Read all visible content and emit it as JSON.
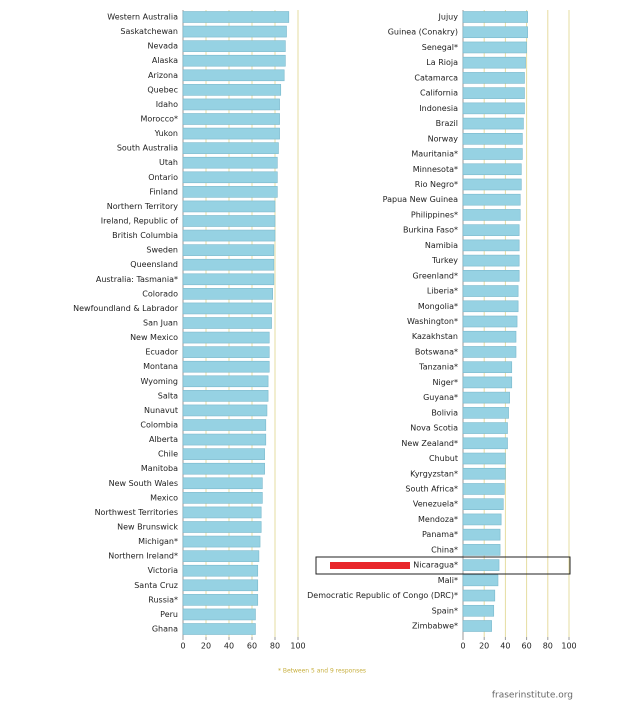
{
  "chart_data": [
    {
      "type": "bar",
      "orientation": "horizontal",
      "color": "#96d2e3",
      "categories": [
        "Western Australia",
        "Saskatchewan",
        "Nevada",
        "Alaska",
        "Arizona",
        "Quebec",
        "Idaho",
        "Morocco*",
        "Yukon",
        "South Australia",
        "Utah",
        "Ontario",
        "Finland",
        "Northern Territory",
        "Ireland, Republic of",
        "British Columbia",
        "Sweden",
        "Queensland",
        "Australia: Tasmania*",
        "Colorado",
        "Newfoundland & Labrador",
        "San Juan",
        "New Mexico",
        "Ecuador",
        "Montana",
        "Wyoming",
        "Salta",
        "Nunavut",
        "Colombia",
        "Alberta",
        "Chile",
        "Manitoba",
        "New South Wales",
        "Mexico",
        "Northwest Territories",
        "New Brunswick",
        "Michigan*",
        "Northern Ireland*",
        "Victoria",
        "Santa Cruz",
        "Russia*",
        "Peru",
        "Ghana"
      ],
      "values": [
        92,
        90,
        89,
        89,
        88,
        85,
        84,
        84,
        84,
        83,
        82,
        82,
        82,
        80,
        80,
        80,
        79,
        79,
        79,
        78,
        77,
        77,
        75,
        75,
        75,
        74,
        74,
        73,
        72,
        72,
        71,
        71,
        69,
        69,
        68,
        68,
        67,
        66,
        65,
        65,
        65,
        63,
        63
      ],
      "xlim": [
        0,
        100
      ],
      "xticks": [
        0,
        20,
        40,
        60,
        80,
        100
      ],
      "grid": true
    },
    {
      "type": "bar",
      "orientation": "horizontal",
      "color": "#96d2e3",
      "categories": [
        "Jujuy",
        "Guinea (Conakry)",
        "Senegal*",
        "La Rioja",
        "Catamarca",
        "California",
        "Indonesia",
        "Brazil",
        "Norway",
        "Mauritania*",
        "Minnesota*",
        "Rio Negro*",
        "Papua New Guinea",
        "Philippines*",
        "Burkina Faso*",
        "Namibia",
        "Turkey",
        "Greenland*",
        "Liberia*",
        "Mongolia*",
        "Washington*",
        "Kazakhstan",
        "Botswana*",
        "Tanzania*",
        "Niger*",
        "Guyana*",
        "Bolivia",
        "Nova Scotia",
        "New Zealand*",
        "Chubut",
        "Kyrgyzstan*",
        "South Africa*",
        "Venezuela*",
        "Mendoza*",
        "Panama*",
        "China*",
        "Nicaragua*",
        "Mali*",
        "Democratic Republic of Congo (DRC)*",
        "Spain*",
        "Zimbabwe*"
      ],
      "values": [
        61,
        61,
        60,
        59,
        58,
        58,
        58,
        57,
        56,
        56,
        55,
        55,
        54,
        54,
        53,
        53,
        53,
        53,
        52,
        52,
        51,
        50,
        50,
        46,
        46,
        44,
        43,
        42,
        42,
        40,
        40,
        39,
        38,
        36,
        35,
        35,
        34,
        33,
        30,
        29,
        27
      ],
      "xlim": [
        0,
        100
      ],
      "xticks": [
        0,
        20,
        40,
        60,
        80,
        100
      ],
      "grid": true
    }
  ],
  "footnote": "* Between 5 and 9 responses",
  "source": "fraserinstitute.org"
}
